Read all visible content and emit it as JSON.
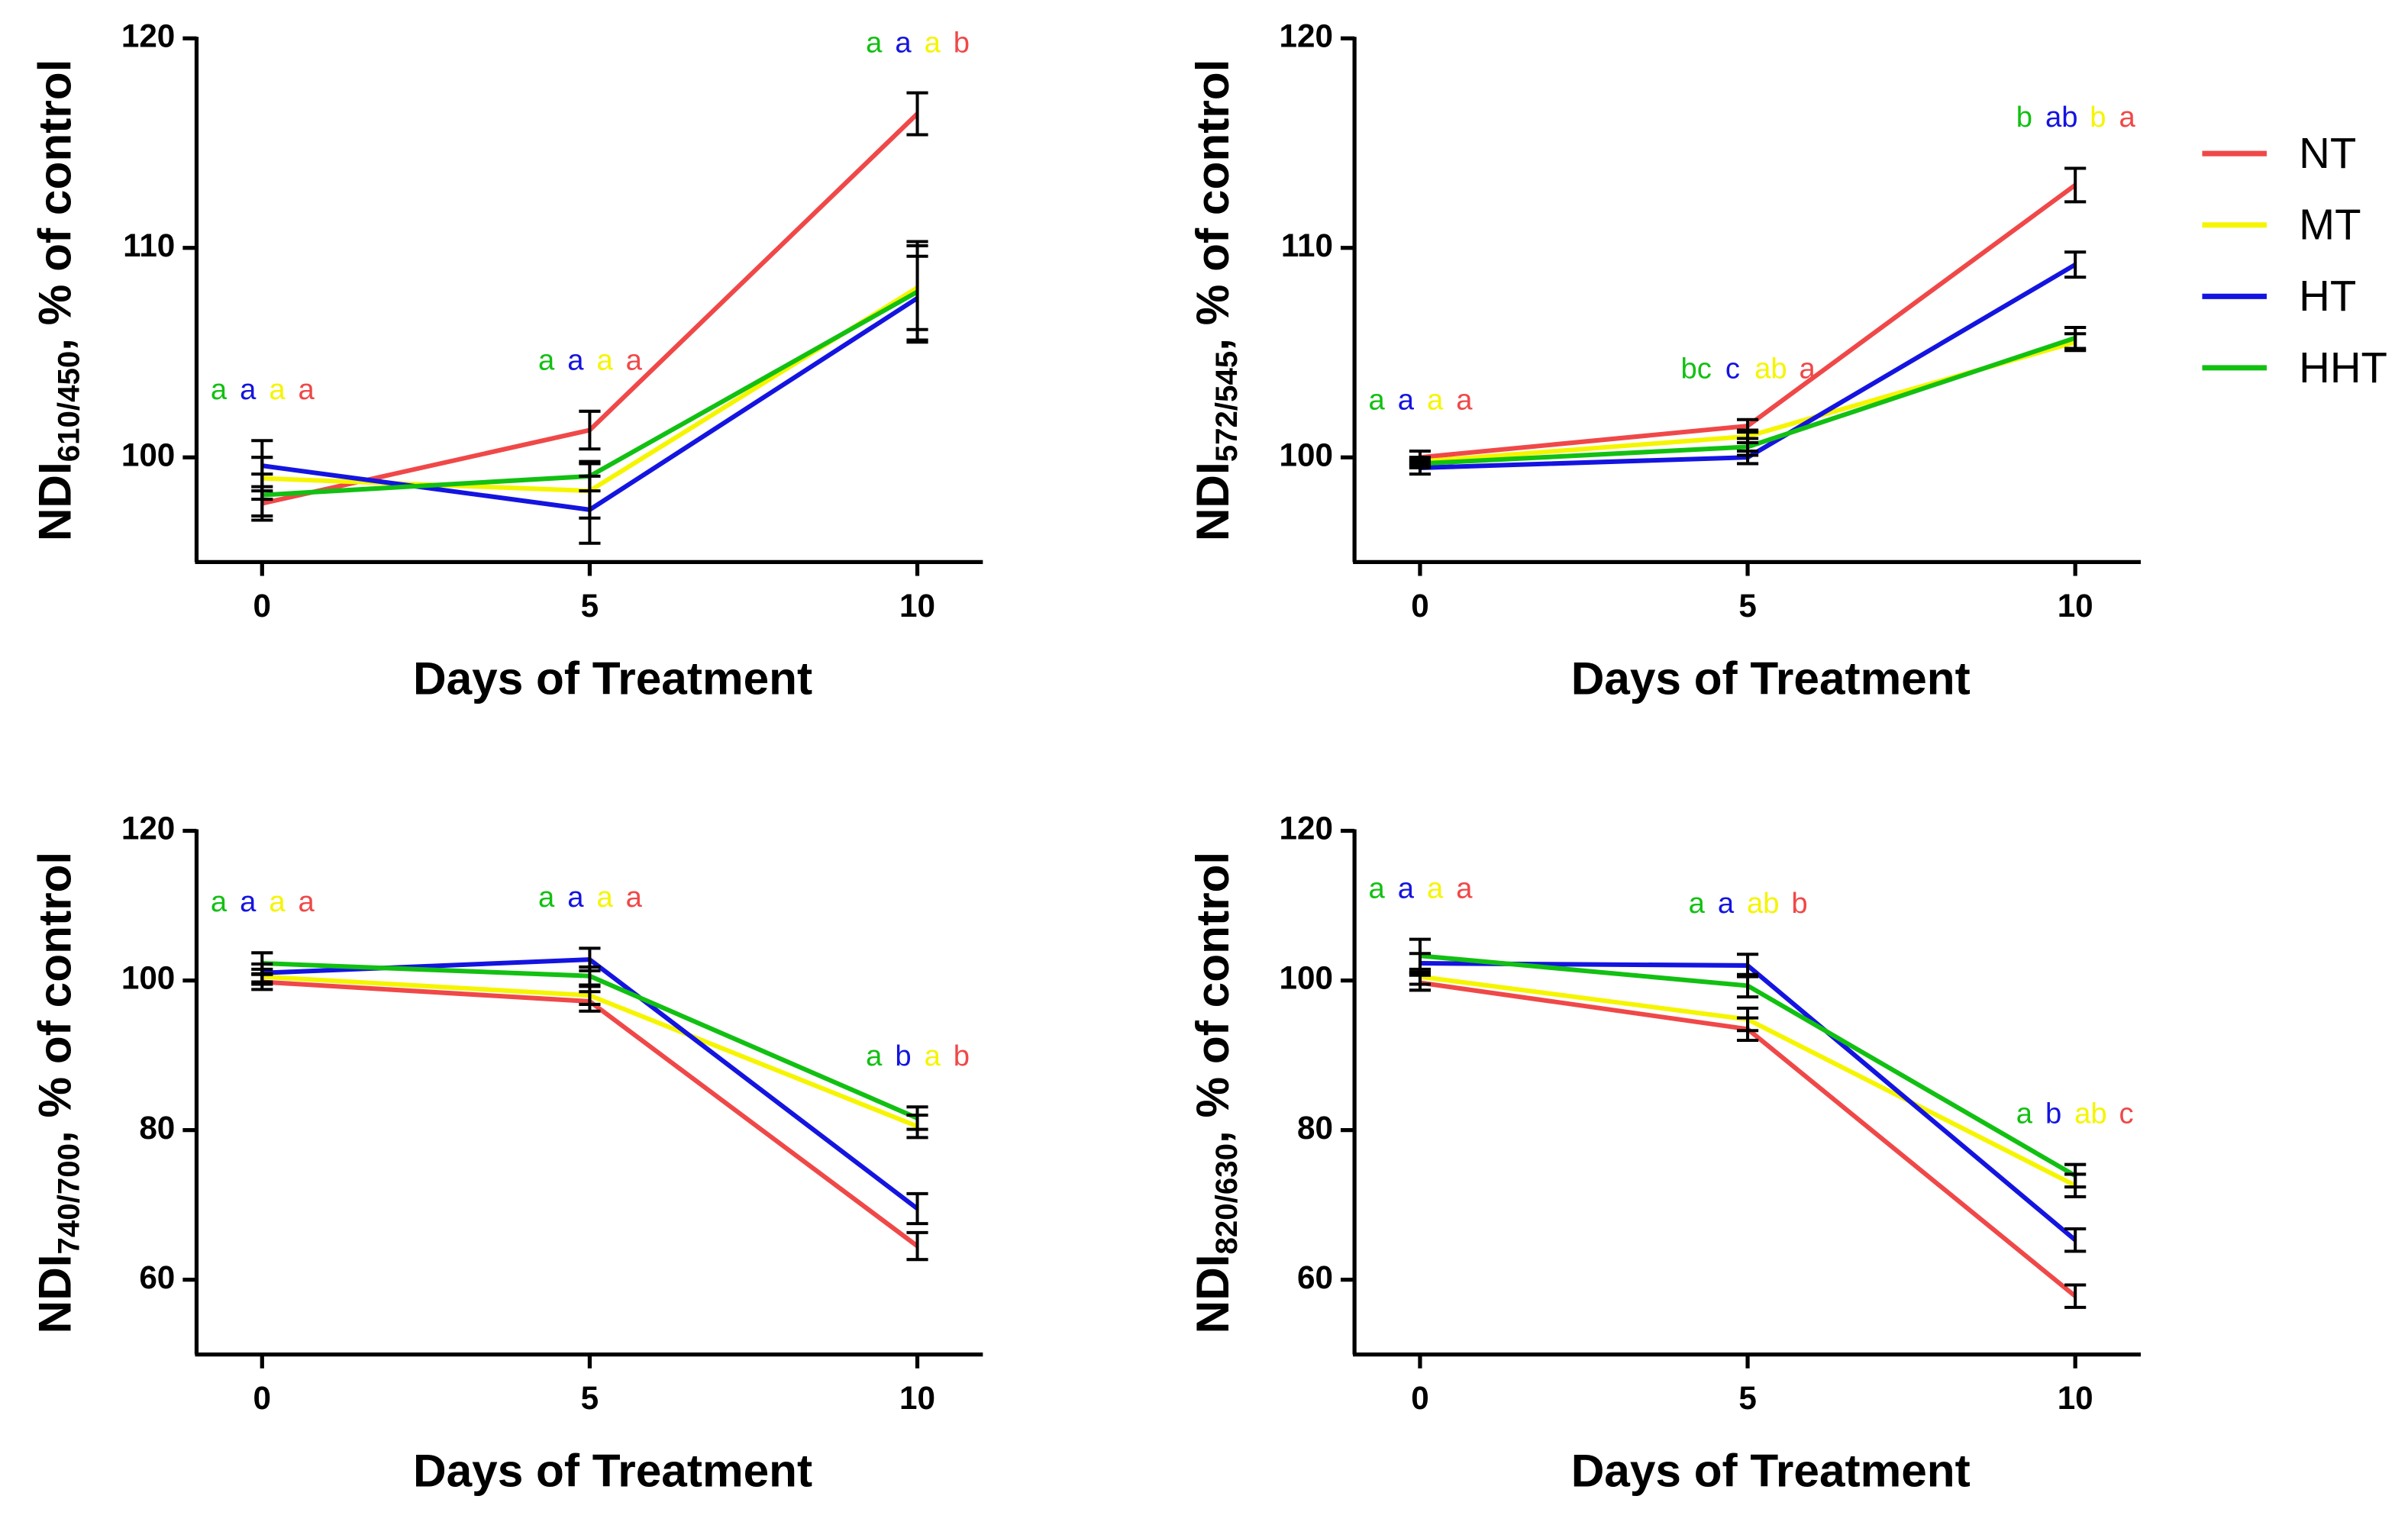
{
  "chart_data": [
    {
      "type": "line",
      "xlabel": "Days of Treatment",
      "ylabel": {
        "main": "NDI",
        "sub": "610/450",
        "rest": ", % of control"
      },
      "x": [
        0,
        5,
        10
      ],
      "xlim": [
        -1,
        11
      ],
      "xticks": [
        0,
        5,
        10
      ],
      "ylim": [
        95,
        120
      ],
      "yticks": [
        100,
        110,
        120
      ],
      "series": [
        {
          "color": "#f04848",
          "values": [
            97.8,
            101.3,
            116.4
          ],
          "errors": [
            0.8,
            0.9,
            1.0
          ],
          "letters": [
            "a",
            "a",
            "b"
          ]
        },
        {
          "color": "#f5f500",
          "values": [
            99.0,
            98.4,
            108.1
          ],
          "errors": [
            1.0,
            1.3,
            2.0
          ],
          "letters": [
            "a",
            "a",
            "a"
          ]
        },
        {
          "color": "#1414e0",
          "values": [
            99.6,
            97.5,
            107.6
          ],
          "errors": [
            1.2,
            1.6,
            2.0
          ],
          "letters": [
            "a",
            "a",
            "a"
          ]
        },
        {
          "color": "#12c012",
          "values": [
            98.2,
            99.1,
            107.9
          ],
          "errors": [
            1.0,
            0.7,
            2.4
          ],
          "letters": [
            "a",
            "a",
            "a"
          ]
        }
      ]
    },
    {
      "type": "line",
      "xlabel": "Days of Treatment",
      "ylabel": {
        "main": "NDI",
        "sub": "572/545",
        "rest": ", % of control"
      },
      "x": [
        0,
        5,
        10
      ],
      "xlim": [
        -1,
        11
      ],
      "xticks": [
        0,
        5,
        10
      ],
      "ylim": [
        95,
        120
      ],
      "yticks": [
        100,
        110,
        120
      ],
      "legend": "right",
      "series": [
        {
          "name": "NT",
          "color": "#f04848",
          "values": [
            100.0,
            101.5,
            113.0
          ],
          "errors": [
            0.3,
            0.3,
            0.8
          ],
          "letters": [
            "a",
            "a",
            "a"
          ]
        },
        {
          "name": "MT",
          "color": "#f5f500",
          "values": [
            99.8,
            101.0,
            105.5
          ],
          "errors": [
            0.2,
            0.3,
            0.4
          ],
          "letters": [
            "a",
            "ab",
            "b"
          ]
        },
        {
          "name": "HT",
          "color": "#1414e0",
          "values": [
            99.5,
            100.0,
            109.2
          ],
          "errors": [
            0.3,
            0.3,
            0.6
          ],
          "letters": [
            "a",
            "c",
            "ab"
          ]
        },
        {
          "name": "HHT",
          "color": "#12c012",
          "values": [
            99.7,
            100.5,
            105.7
          ],
          "errors": [
            0.2,
            0.4,
            0.5
          ],
          "letters": [
            "a",
            "bc",
            "b"
          ]
        }
      ]
    },
    {
      "type": "line",
      "xlabel": "Days of Treatment",
      "ylabel": {
        "main": "NDI",
        "sub": "740/700",
        "rest": ", % of control"
      },
      "x": [
        0,
        5,
        10
      ],
      "xlim": [
        -1,
        11
      ],
      "xticks": [
        0,
        5,
        10
      ],
      "ylim": [
        50,
        120
      ],
      "yticks": [
        60,
        80,
        100,
        120
      ],
      "series": [
        {
          "color": "#f04848",
          "values": [
            99.8,
            97.2,
            64.5
          ],
          "errors": [
            1.0,
            1.3,
            1.8
          ],
          "letters": [
            "a",
            "a",
            "b"
          ]
        },
        {
          "color": "#f5f500",
          "values": [
            100.5,
            98.0,
            80.5
          ],
          "errors": [
            1.0,
            1.2,
            1.5
          ],
          "letters": [
            "a",
            "a",
            "a"
          ]
        },
        {
          "color": "#1414e0",
          "values": [
            101.0,
            102.8,
            69.5
          ],
          "errors": [
            1.2,
            1.5,
            2.0
          ],
          "letters": [
            "a",
            "a",
            "b"
          ]
        },
        {
          "color": "#12c012",
          "values": [
            102.3,
            100.6,
            81.6
          ],
          "errors": [
            1.4,
            1.2,
            1.5
          ],
          "letters": [
            "a",
            "a",
            "a"
          ]
        }
      ]
    },
    {
      "type": "line",
      "xlabel": "Days of Treatment",
      "ylabel": {
        "main": "NDI",
        "sub": "820/630",
        "rest": ", % of control"
      },
      "x": [
        0,
        5,
        10
      ],
      "xlim": [
        -1,
        11
      ],
      "xticks": [
        0,
        5,
        10
      ],
      "ylim": [
        50,
        120
      ],
      "yticks": [
        60,
        80,
        100,
        120
      ],
      "series": [
        {
          "color": "#f04848",
          "values": [
            99.7,
            93.5,
            57.8
          ],
          "errors": [
            1.0,
            1.5,
            1.5
          ],
          "letters": [
            "a",
            "b",
            "c"
          ]
        },
        {
          "color": "#f5f500",
          "values": [
            100.5,
            94.8,
            72.6
          ],
          "errors": [
            1.0,
            1.5,
            1.5
          ],
          "letters": [
            "a",
            "ab",
            "ab"
          ]
        },
        {
          "color": "#1414e0",
          "values": [
            102.3,
            102.0,
            65.3
          ],
          "errors": [
            1.3,
            1.5,
            1.5
          ],
          "letters": [
            "a",
            "a",
            "b"
          ]
        },
        {
          "color": "#12c012",
          "values": [
            103.3,
            99.3,
            73.9
          ],
          "errors": [
            2.2,
            1.5,
            1.5
          ],
          "letters": [
            "a",
            "a",
            "a"
          ]
        }
      ]
    }
  ]
}
